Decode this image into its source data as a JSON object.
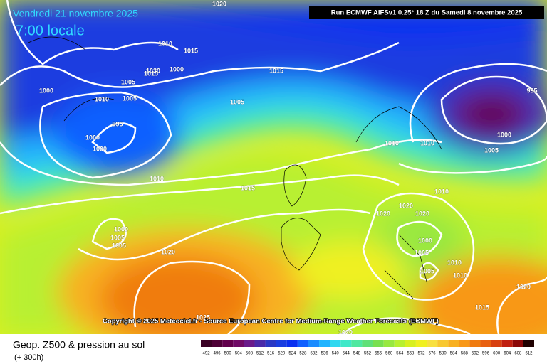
{
  "header": {
    "date": "Vendredi 21 novembre 2025",
    "time": "7:00 locale",
    "run": "Run ECMWF AIFSv1 0.25° 18 Z du Samedi 8 novembre 2025"
  },
  "copyright": "Copyright © 2025 Meteociel.fr - Source European Centre for Medium-Range Weather Forecasts (ECMWF)",
  "legend": {
    "title": "Geop. Z500 & pression au sol",
    "lead": "(+ 300h)",
    "scale": [
      492,
      496,
      500,
      504,
      508,
      512,
      516,
      520,
      524,
      528,
      532,
      536,
      540,
      544,
      548,
      552,
      556,
      560,
      564,
      568,
      572,
      576,
      580,
      584,
      588,
      592,
      596,
      600,
      604,
      608,
      612
    ],
    "colors": [
      "#3a0024",
      "#4e0036",
      "#62004c",
      "#700a66",
      "#6a1a8a",
      "#4a2aa8",
      "#2a38c4",
      "#1a3ee0",
      "#0a30f0",
      "#1060ff",
      "#1a8cff",
      "#20b4ff",
      "#30d8f0",
      "#40e8c8",
      "#50e8a0",
      "#60e078",
      "#78e050",
      "#98e840",
      "#b8f030",
      "#d8f020",
      "#f0f020",
      "#f8e040",
      "#f8c830",
      "#f8b020",
      "#f89818",
      "#f07c10",
      "#e86010",
      "#d84010",
      "#c02010",
      "#8c0808",
      "#200000"
    ]
  },
  "isobars": [
    "1020",
    "1010",
    "1015",
    "1030",
    "1015",
    "1000",
    "1005",
    "1010",
    "1000",
    "1005",
    "995",
    "1000",
    "1000",
    "1010",
    "1005",
    "1015",
    "1005",
    "995",
    "1000",
    "1010",
    "1010",
    "1005",
    "1015",
    "1000",
    "1005",
    "1020",
    "1010",
    "1020",
    "1020",
    "1020",
    "1000",
    "1005",
    "1005",
    "1010",
    "1010",
    "1020",
    "1015",
    "1025",
    "1020"
  ]
}
